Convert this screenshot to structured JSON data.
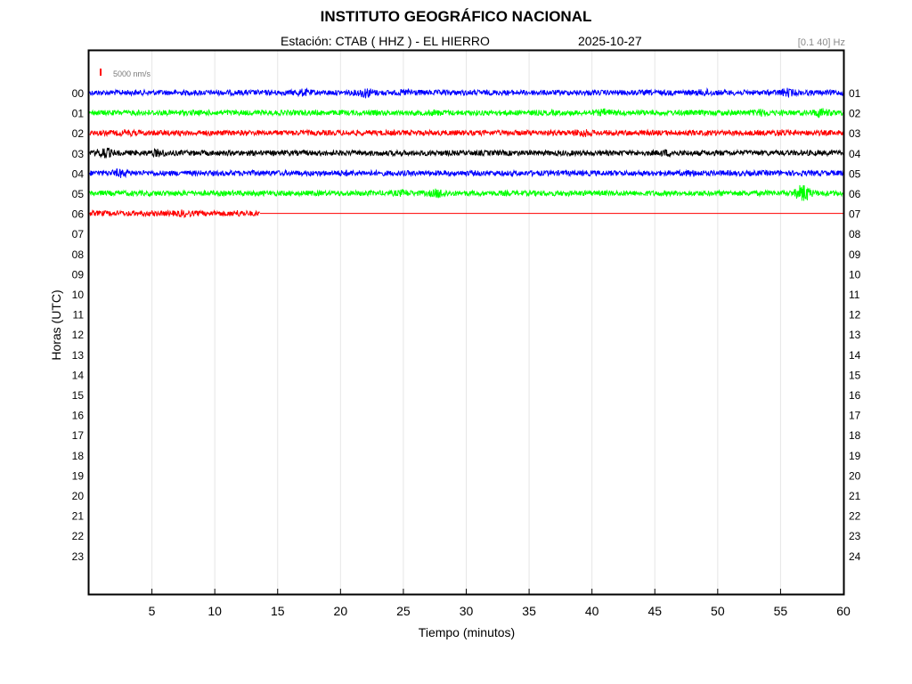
{
  "title": "INSTITUTO GEOGRÁFICO NACIONAL",
  "subtitle": "Estación:  CTAB ( HHZ ) - EL HIERRO",
  "date": "2025-10-27",
  "filter_label": "[0.1 40] Hz",
  "scale_label": "5000 nm/s",
  "colors": {
    "blue": "#0000ff",
    "green": "#00ff00",
    "red": "#ff0000",
    "black": "#000000",
    "scale_bar": "#ff0000",
    "grid": "#e6e6e6"
  },
  "chart_data": {
    "type": "line",
    "title": "INSTITUTO GEOGRÁFICO NACIONAL",
    "xlabel": "Tiempo (minutos)",
    "ylabel": "Horas (UTC)",
    "xlim": [
      0,
      60
    ],
    "x_ticks": [
      5,
      10,
      15,
      20,
      25,
      30,
      35,
      40,
      45,
      50,
      55,
      60
    ],
    "y_ticks_left": [
      "00",
      "01",
      "02",
      "03",
      "04",
      "05",
      "06",
      "07",
      "08",
      "09",
      "10",
      "11",
      "12",
      "13",
      "14",
      "15",
      "16",
      "17",
      "18",
      "19",
      "20",
      "21",
      "22",
      "23"
    ],
    "y_ticks_right": [
      "01",
      "02",
      "03",
      "04",
      "05",
      "06",
      "07",
      "08",
      "09",
      "10",
      "11",
      "12",
      "13",
      "14",
      "15",
      "16",
      "17",
      "18",
      "19",
      "20",
      "21",
      "22",
      "23",
      "24"
    ],
    "grid": "vertical",
    "series": [
      {
        "hour": "00",
        "color": "blue",
        "end_minute": 60,
        "bursts": [
          [
            17,
            1.6
          ],
          [
            22,
            2.2
          ],
          [
            25.5,
            1.6
          ],
          [
            49,
            1.5
          ],
          [
            55.5,
            1.8
          ]
        ]
      },
      {
        "hour": "01",
        "color": "green",
        "end_minute": 60,
        "bursts": [
          [
            27.5,
            1.3
          ],
          [
            41,
            1.6
          ],
          [
            53.5,
            1.6
          ],
          [
            58.2,
            2.0
          ]
        ]
      },
      {
        "hour": "02",
        "color": "red",
        "end_minute": 60,
        "bursts": [
          [
            3,
            1.4
          ],
          [
            39.2,
            1.8
          ],
          [
            55,
            1.4
          ]
        ]
      },
      {
        "hour": "03",
        "color": "black",
        "end_minute": 60,
        "bursts": [
          [
            1.2,
            2.4
          ],
          [
            5.5,
            1.7
          ],
          [
            46,
            1.5
          ]
        ]
      },
      {
        "hour": "04",
        "color": "blue",
        "end_minute": 60,
        "bursts": [
          [
            2.5,
            1.8
          ],
          [
            20.5,
            1.3
          ],
          [
            48,
            1.4
          ]
        ]
      },
      {
        "hour": "05",
        "color": "green",
        "end_minute": 60,
        "bursts": [
          [
            25,
            1.5
          ],
          [
            27.8,
            2.0
          ],
          [
            56.8,
            3.6
          ]
        ]
      },
      {
        "hour": "06",
        "color": "red",
        "end_minute": 13.6,
        "bursts": [
          [
            7.5,
            1.5
          ],
          [
            11.8,
            1.3
          ]
        ]
      }
    ]
  }
}
